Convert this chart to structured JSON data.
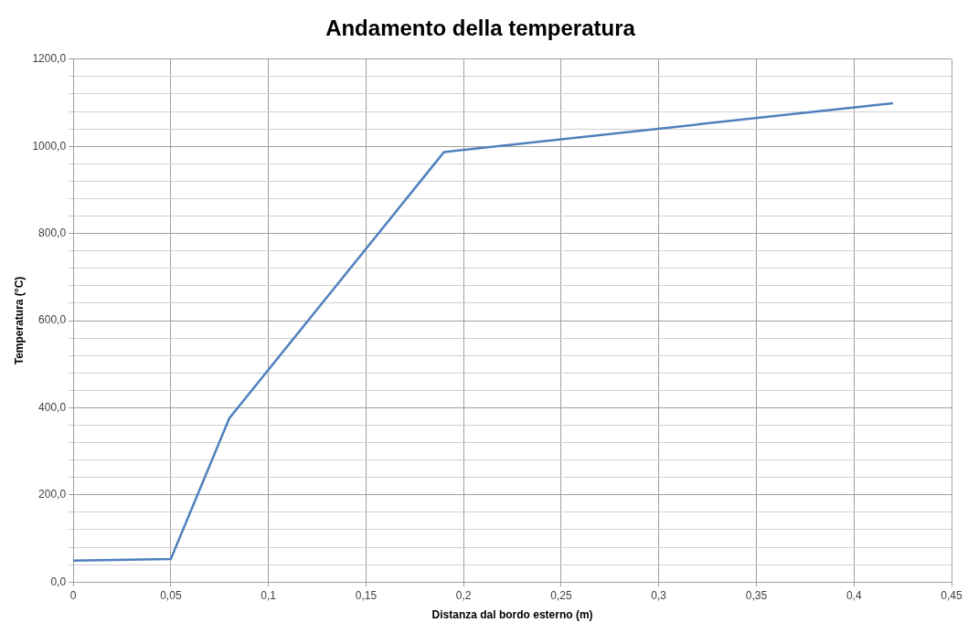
{
  "chart_data": {
    "type": "line",
    "title": "Andamento della temperatura",
    "xlabel": "Distanza dal bordo esterno (m)",
    "ylabel": "Temperatura (°C)",
    "x": [
      0,
      0.05,
      0.08,
      0.19,
      0.42
    ],
    "series": [
      {
        "color": "#4f81bd",
        "values": [
          49,
          53,
          376,
          987,
          1099
        ]
      }
    ],
    "xlim": [
      0,
      0.45
    ],
    "xticks": [
      0,
      {
        "value": 0.05,
        "label": "0,05"
      },
      {
        "value": 0.1,
        "label": "0,1"
      },
      {
        "value": 0.15,
        "label": "0,15"
      },
      {
        "value": 0.2,
        "label": "0,2"
      },
      {
        "value": 0.25,
        "label": "0,25"
      },
      {
        "value": 0.3,
        "label": "0,3"
      },
      {
        "value": 0.35,
        "label": "0,35"
      },
      {
        "value": 0.4,
        "label": "0,4"
      },
      {
        "value": 0.45,
        "label": "0,45"
      }
    ],
    "ylim": [
      0,
      1200
    ],
    "yticks": [
      {
        "value": 0,
        "label": "0,0"
      },
      {
        "value": 40,
        "label": null
      },
      {
        "value": 80,
        "label": null
      },
      {
        "value": 120,
        "label": null
      },
      {
        "value": 160,
        "label": null
      },
      {
        "value": 200,
        "label": "200,0"
      },
      {
        "value": 240,
        "label": null
      },
      {
        "value": 280,
        "label": null
      },
      {
        "value": 320,
        "label": null
      },
      {
        "value": 360,
        "label": null
      },
      {
        "value": 400,
        "label": "400,0"
      },
      {
        "value": 440,
        "label": null
      },
      {
        "value": 480,
        "label": null
      },
      {
        "value": 520,
        "label": null
      },
      {
        "value": 560,
        "label": null
      },
      {
        "value": 600,
        "label": "600,0"
      },
      {
        "value": 640,
        "label": null
      },
      {
        "value": 680,
        "label": null
      },
      {
        "value": 720,
        "label": null
      },
      {
        "value": 760,
        "label": null
      },
      {
        "value": 800,
        "label": "800,0"
      },
      {
        "value": 840,
        "label": null
      },
      {
        "value": 880,
        "label": null
      },
      {
        "value": 920,
        "label": null
      },
      {
        "value": 960,
        "label": null
      },
      {
        "value": 1000,
        "label": "1000,0"
      },
      {
        "value": 1040,
        "label": null
      },
      {
        "value": 1080,
        "label": null
      },
      {
        "value": 1120,
        "label": null
      },
      {
        "value": 1160,
        "label": null
      },
      {
        "value": 1200,
        "label": "1200,0"
      }
    ],
    "grid": true,
    "marker": "none",
    "line_style": "solid",
    "legend": false
  }
}
